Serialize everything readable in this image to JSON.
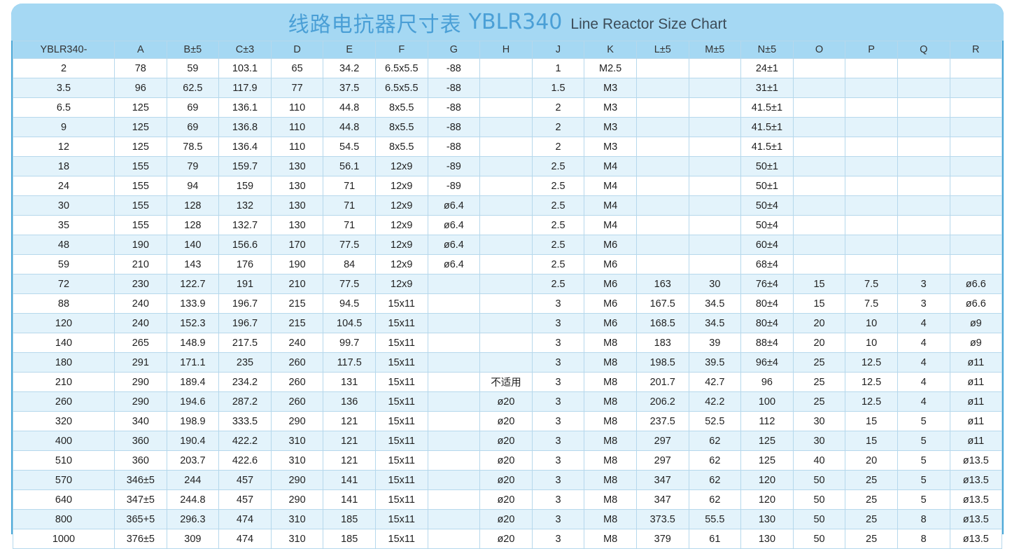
{
  "title": {
    "chinese": "线路电抗器尺寸表",
    "model": "YBLR340",
    "english": "Line  Reactor Size Chart"
  },
  "table": {
    "headers": [
      "YBLR340-",
      "A",
      "B±5",
      "C±3",
      "D",
      "E",
      "F",
      "G",
      "H",
      "J",
      "K",
      "L±5",
      "M±5",
      "N±5",
      "O",
      "P",
      "Q",
      "R"
    ],
    "rows": [
      [
        "2",
        "78",
        "59",
        "103.1",
        "65",
        "34.2",
        "6.5x5.5",
        "-88",
        "",
        "1",
        "M2.5",
        "",
        "",
        "24±1",
        "",
        "",
        "",
        ""
      ],
      [
        "3.5",
        "96",
        "62.5",
        "117.9",
        "77",
        "37.5",
        "6.5x5.5",
        "-88",
        "",
        "1.5",
        "M3",
        "",
        "",
        "31±1",
        "",
        "",
        "",
        ""
      ],
      [
        "6.5",
        "125",
        "69",
        "136.1",
        "110",
        "44.8",
        "8x5.5",
        "-88",
        "",
        "2",
        "M3",
        "",
        "",
        "41.5±1",
        "",
        "",
        "",
        ""
      ],
      [
        "9",
        "125",
        "69",
        "136.8",
        "110",
        "44.8",
        "8x5.5",
        "-88",
        "",
        "2",
        "M3",
        "",
        "",
        "41.5±1",
        "",
        "",
        "",
        ""
      ],
      [
        "12",
        "125",
        "78.5",
        "136.4",
        "110",
        "54.5",
        "8x5.5",
        "-88",
        "",
        "2",
        "M3",
        "",
        "",
        "41.5±1",
        "",
        "",
        "",
        ""
      ],
      [
        "18",
        "155",
        "79",
        "159.7",
        "130",
        "56.1",
        "12x9",
        "-89",
        "",
        "2.5",
        "M4",
        "",
        "",
        "50±1",
        "",
        "",
        "",
        ""
      ],
      [
        "24",
        "155",
        "94",
        "159",
        "130",
        "71",
        "12x9",
        "-89",
        "",
        "2.5",
        "M4",
        "",
        "",
        "50±1",
        "",
        "",
        "",
        ""
      ],
      [
        "30",
        "155",
        "128",
        "132",
        "130",
        "71",
        "12x9",
        "ø6.4",
        "",
        "2.5",
        "M4",
        "",
        "",
        "50±4",
        "",
        "",
        "",
        ""
      ],
      [
        "35",
        "155",
        "128",
        "132.7",
        "130",
        "71",
        "12x9",
        "ø6.4",
        "",
        "2.5",
        "M4",
        "",
        "",
        "50±4",
        "",
        "",
        "",
        ""
      ],
      [
        "48",
        "190",
        "140",
        "156.6",
        "170",
        "77.5",
        "12x9",
        "ø6.4",
        "",
        "2.5",
        "M6",
        "",
        "",
        "60±4",
        "",
        "",
        "",
        ""
      ],
      [
        "59",
        "210",
        "143",
        "176",
        "190",
        "84",
        "12x9",
        "ø6.4",
        "",
        "2.5",
        "M6",
        "",
        "",
        "68±4",
        "",
        "",
        "",
        ""
      ],
      [
        "72",
        "230",
        "122.7",
        "191",
        "210",
        "77.5",
        "12x9",
        "",
        "",
        "2.5",
        "M6",
        "163",
        "30",
        "76±4",
        "15",
        "7.5",
        "3",
        "ø6.6"
      ],
      [
        "88",
        "240",
        "133.9",
        "196.7",
        "215",
        "94.5",
        "15x11",
        "",
        "",
        "3",
        "M6",
        "167.5",
        "34.5",
        "80±4",
        "15",
        "7.5",
        "3",
        "ø6.6"
      ],
      [
        "120",
        "240",
        "152.3",
        "196.7",
        "215",
        "104.5",
        "15x11",
        "",
        "",
        "3",
        "M6",
        "168.5",
        "34.5",
        "80±4",
        "20",
        "10",
        "4",
        "ø9"
      ],
      [
        "140",
        "265",
        "148.9",
        "217.5",
        "240",
        "99.7",
        "15x11",
        "",
        "",
        "3",
        "M8",
        "183",
        "39",
        "88±4",
        "20",
        "10",
        "4",
        "ø9"
      ],
      [
        "180",
        "291",
        "171.1",
        "235",
        "260",
        "117.5",
        "15x11",
        "",
        "",
        "3",
        "M8",
        "198.5",
        "39.5",
        "96±4",
        "25",
        "12.5",
        "4",
        "ø11"
      ],
      [
        "210",
        "290",
        "189.4",
        "234.2",
        "260",
        "131",
        "15x11",
        "",
        "不适用",
        "3",
        "M8",
        "201.7",
        "42.7",
        "96",
        "25",
        "12.5",
        "4",
        "ø11"
      ],
      [
        "260",
        "290",
        "194.6",
        "287.2",
        "260",
        "136",
        "15x11",
        "",
        "ø20",
        "3",
        "M8",
        "206.2",
        "42.2",
        "100",
        "25",
        "12.5",
        "4",
        "ø11"
      ],
      [
        "320",
        "340",
        "198.9",
        "333.5",
        "290",
        "121",
        "15x11",
        "",
        "ø20",
        "3",
        "M8",
        "237.5",
        "52.5",
        "112",
        "30",
        "15",
        "5",
        "ø11"
      ],
      [
        "400",
        "360",
        "190.4",
        "422.2",
        "310",
        "121",
        "15x11",
        "",
        "ø20",
        "3",
        "M8",
        "297",
        "62",
        "125",
        "30",
        "15",
        "5",
        "ø11"
      ],
      [
        "510",
        "360",
        "203.7",
        "422.6",
        "310",
        "121",
        "15x11",
        "",
        "ø20",
        "3",
        "M8",
        "297",
        "62",
        "125",
        "40",
        "20",
        "5",
        "ø13.5"
      ],
      [
        "570",
        "346±5",
        "244",
        "457",
        "290",
        "141",
        "15x11",
        "",
        "ø20",
        "3",
        "M8",
        "347",
        "62",
        "120",
        "50",
        "25",
        "5",
        "ø13.5"
      ],
      [
        "640",
        "347±5",
        "244.8",
        "457",
        "290",
        "141",
        "15x11",
        "",
        "ø20",
        "3",
        "M8",
        "347",
        "62",
        "120",
        "50",
        "25",
        "5",
        "ø13.5"
      ],
      [
        "800",
        "365+5",
        "296.3",
        "474",
        "310",
        "185",
        "15x11",
        "",
        "ø20",
        "3",
        "M8",
        "373.5",
        "55.5",
        "130",
        "50",
        "25",
        "8",
        "ø13.5"
      ],
      [
        "1000",
        "376±5",
        "309",
        "474",
        "310",
        "185",
        "15x11",
        "",
        "ø20",
        "3",
        "M8",
        "379",
        "61",
        "130",
        "50",
        "25",
        "8",
        "ø13.5"
      ]
    ]
  }
}
